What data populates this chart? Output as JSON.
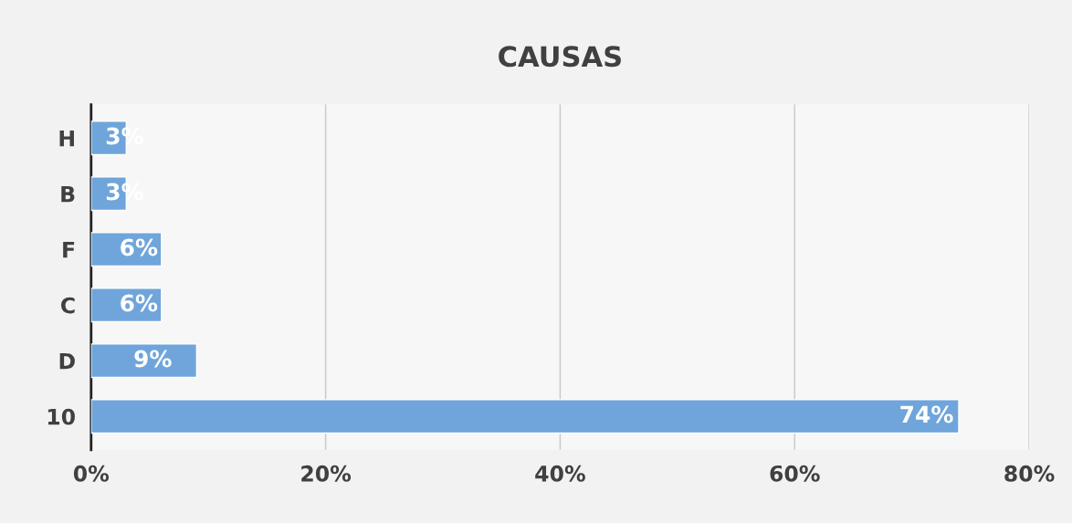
{
  "chart_data": {
    "type": "bar",
    "orientation": "horizontal",
    "title": "CAUSAS",
    "categories": [
      "H",
      "B",
      "F",
      "C",
      "D",
      "10"
    ],
    "values": [
      3,
      3,
      6,
      6,
      9,
      74
    ],
    "value_labels": [
      "3%",
      "3%",
      "6%",
      "6%",
      "9%",
      "74%"
    ],
    "color": "#6fa5db",
    "xlim": [
      0,
      80
    ],
    "xticks": [
      {
        "value": 0,
        "label": "0%"
      },
      {
        "value": 20,
        "label": "20%"
      },
      {
        "value": 40,
        "label": "40%"
      },
      {
        "value": 60,
        "label": "60%"
      },
      {
        "value": 80,
        "label": "80%"
      }
    ],
    "grid": "x",
    "legend": false
  }
}
